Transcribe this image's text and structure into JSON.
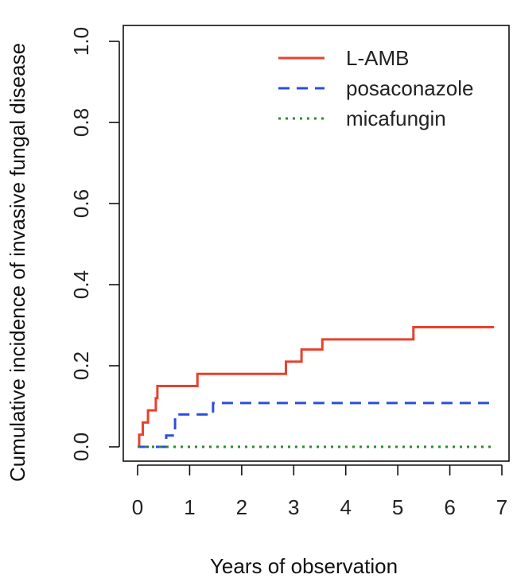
{
  "chart_data": {
    "type": "line",
    "step": true,
    "title": "",
    "xlabel": "Years of observation",
    "ylabel": "Cumulative incidence of invasive fungal disease",
    "xlim": [
      0,
      7
    ],
    "ylim": [
      0,
      1
    ],
    "xticks": [
      0,
      1,
      2,
      3,
      4,
      5,
      6,
      7
    ],
    "yticks": [
      0.0,
      0.2,
      0.4,
      0.6,
      0.8,
      1.0
    ],
    "xtick_labels": [
      "0",
      "1",
      "2",
      "3",
      "4",
      "5",
      "6",
      "7"
    ],
    "ytick_labels": [
      "0.0",
      "0.2",
      "0.4",
      "0.6",
      "0.8",
      "1.0"
    ],
    "grid": false,
    "legend_position": "top-right",
    "series": [
      {
        "name": "L-AMB",
        "color": "#e8412c",
        "style": "solid",
        "x": [
          0,
          0.03,
          0.1,
          0.2,
          0.35,
          0.38,
          1.15,
          2.85,
          3.15,
          3.55,
          5.3,
          6.85
        ],
        "y": [
          0,
          0.03,
          0.06,
          0.09,
          0.12,
          0.15,
          0.18,
          0.21,
          0.24,
          0.265,
          0.295,
          0.295
        ]
      },
      {
        "name": "posaconazole",
        "color": "#2a4fd6",
        "style": "dashed",
        "x": [
          0,
          0.55,
          0.72,
          1.45,
          6.85
        ],
        "y": [
          0,
          0.028,
          0.08,
          0.108,
          0.108
        ]
      },
      {
        "name": "micafungin",
        "color": "#2e8b2e",
        "style": "dotted",
        "x": [
          0,
          6.85
        ],
        "y": [
          0,
          0
        ]
      }
    ]
  }
}
